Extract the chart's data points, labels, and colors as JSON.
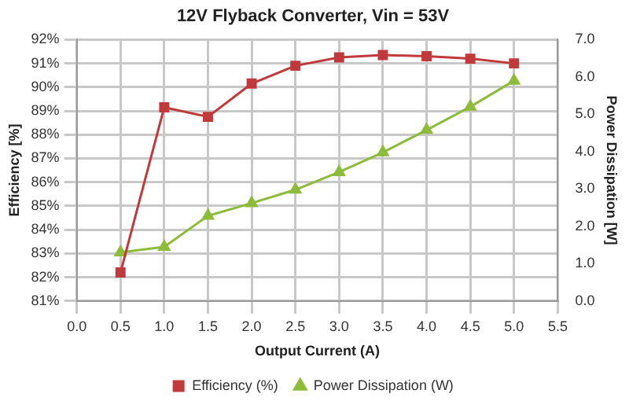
{
  "chart_data": {
    "type": "line",
    "title": "12V Flyback Converter, Vin = 53V",
    "xlabel": "Output Current (A)",
    "ylabel": "Efficiency [%]",
    "y2label": "Power Dissipation [W]",
    "x": [
      0.5,
      1.0,
      1.5,
      2.0,
      2.5,
      3.0,
      3.5,
      4.0,
      4.5,
      5.0
    ],
    "series": [
      {
        "name": "Efficiency (%)",
        "color": "#c0393b",
        "marker": "square",
        "values": [
          82.2,
          89.15,
          88.75,
          90.15,
          90.9,
          91.25,
          91.35,
          91.3,
          91.2,
          91.0
        ]
      },
      {
        "name": "Power Dissipation (W)",
        "color": "#8dbb3a",
        "marker": "triangle",
        "axis": "y2",
        "values": [
          1.3,
          1.45,
          2.28,
          2.62,
          2.98,
          3.45,
          3.98,
          4.58,
          5.2,
          5.9
        ]
      }
    ],
    "xlim": [
      0,
      5.5
    ],
    "xticks": [
      {
        "value": 0,
        "label": "0.0"
      },
      {
        "value": 0.5,
        "label": "0.5"
      },
      {
        "value": 1,
        "label": "1.0"
      },
      {
        "value": 1.5,
        "label": "1.5"
      },
      {
        "value": 2,
        "label": "2.0"
      },
      {
        "value": 2.5,
        "label": "2.5"
      },
      {
        "value": 3,
        "label": "3.0"
      },
      {
        "value": 3.5,
        "label": "3.5"
      },
      {
        "value": 4,
        "label": "4.0"
      },
      {
        "value": 4.5,
        "label": "4.5"
      },
      {
        "value": 5,
        "label": "5.0"
      },
      {
        "value": 5.5,
        "label": "5.5"
      }
    ],
    "ylim": [
      81,
      92
    ],
    "yticks": [
      {
        "value": 81,
        "label": "81%"
      },
      {
        "value": 82,
        "label": "82%"
      },
      {
        "value": 83,
        "label": "83%"
      },
      {
        "value": 84,
        "label": "84%"
      },
      {
        "value": 85,
        "label": "85%"
      },
      {
        "value": 86,
        "label": "86%"
      },
      {
        "value": 87,
        "label": "87%"
      },
      {
        "value": 88,
        "label": "88%"
      },
      {
        "value": 89,
        "label": "89%"
      },
      {
        "value": 90,
        "label": "90%"
      },
      {
        "value": 91,
        "label": "91%"
      },
      {
        "value": 92,
        "label": "92%"
      }
    ],
    "y2lim": [
      0,
      7
    ],
    "y2ticks": [
      {
        "value": 0,
        "label": "0.0"
      },
      {
        "value": 1,
        "label": "1.0"
      },
      {
        "value": 2,
        "label": "2.0"
      },
      {
        "value": 3,
        "label": "3.0"
      },
      {
        "value": 4,
        "label": "4.0"
      },
      {
        "value": 5,
        "label": "5.0"
      },
      {
        "value": 6,
        "label": "6.0"
      },
      {
        "value": 7,
        "label": "7.0"
      }
    ],
    "grid": true,
    "legend": "bottom",
    "line_style": "solid"
  }
}
